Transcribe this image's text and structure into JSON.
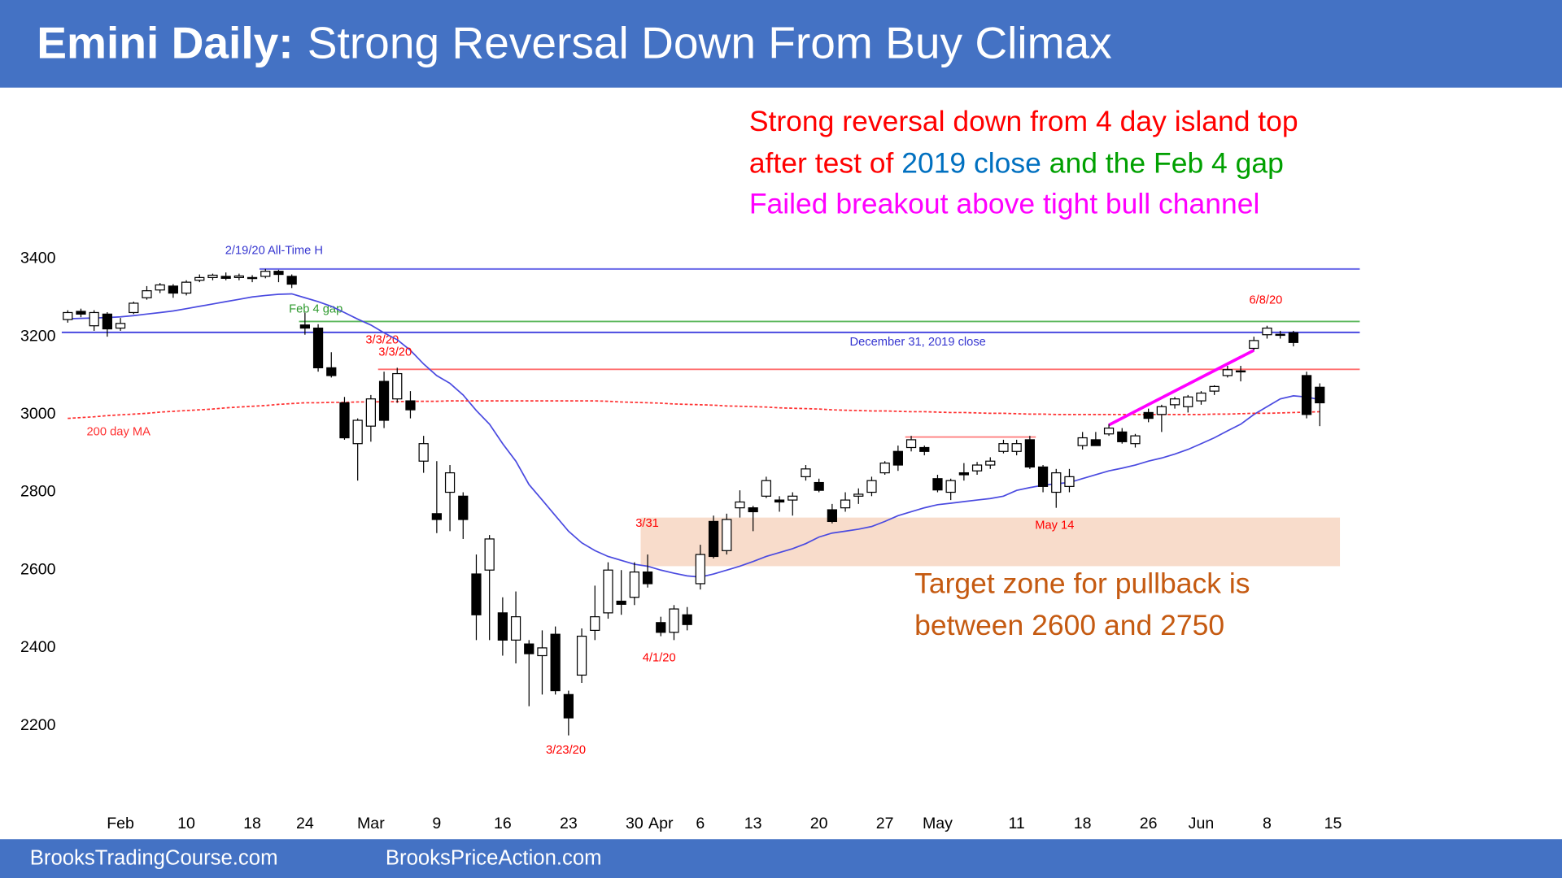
{
  "chart_data": {
    "type": "candlestick",
    "title": [
      "Emini Daily:",
      "Strong Reversal Down From Buy Climax"
    ],
    "footer": [
      "BrooksTradingCourse.com",
      "BrooksPriceAction.com"
    ],
    "notes": [
      [
        {
          "text": "Strong reversal down from 4 day island top",
          "color": "#ff0000"
        }
      ],
      [
        {
          "text": "after test of",
          "color": "#ff0000"
        },
        {
          "text": "2019 close",
          "color": "#0070c0"
        },
        {
          "text": "and the Feb 4 gap",
          "color": "#00a000"
        }
      ],
      [
        {
          "text": "Failed breakout above tight bull channel",
          "color": "#ff00ff"
        }
      ]
    ],
    "target_note": {
      "lines": [
        "Target zone for pullback is",
        "between 2600 and 2750"
      ],
      "color": "#c55a11"
    },
    "categories": [
      null,
      null,
      null,
      null,
      "Feb",
      null,
      null,
      null,
      null,
      "10",
      null,
      null,
      null,
      null,
      "18",
      null,
      null,
      null,
      "24",
      null,
      null,
      null,
      null,
      "Mar",
      null,
      null,
      null,
      null,
      "9",
      null,
      null,
      null,
      null,
      "16",
      null,
      null,
      null,
      null,
      "23",
      null,
      null,
      null,
      null,
      "30",
      null,
      "Apr",
      null,
      null,
      "6",
      null,
      null,
      null,
      "13",
      null,
      null,
      null,
      null,
      "20",
      null,
      null,
      null,
      null,
      "27",
      null,
      null,
      null,
      "May",
      null,
      null,
      null,
      null,
      null,
      "11",
      null,
      null,
      null,
      null,
      "18",
      null,
      null,
      null,
      null,
      "26",
      null,
      null,
      null,
      "Jun",
      null,
      null,
      null,
      null,
      "8",
      null,
      null,
      null,
      null,
      "15"
    ],
    "open": [
      3244,
      3265,
      3228,
      3258,
      3222,
      3262,
      3300,
      3320,
      3330,
      3312,
      3345,
      3352,
      3355,
      3352,
      3350,
      3355,
      3368,
      3355,
      3230,
      3222,
      3120,
      3030,
      2925,
      2970,
      3085,
      3040,
      3035,
      2880,
      2745,
      2800,
      2790,
      2590,
      2600,
      2490,
      2420,
      2410,
      2380,
      2435,
      2280,
      2330,
      2445,
      2490,
      2520,
      2530,
      2595,
      2465,
      2440,
      2485,
      2565,
      2725,
      2650,
      2760,
      2760,
      2790,
      2780,
      2780,
      2840,
      2825,
      2755,
      2760,
      2790,
      2800,
      2850,
      2905,
      2915,
      2915,
      2835,
      2800,
      2850,
      2855,
      2870,
      2905,
      2905,
      2935,
      2865,
      2800,
      2815,
      2920,
      2935,
      2950,
      2955,
      2925,
      3005,
      3000,
      3025,
      3020,
      3035,
      3060,
      3100,
      3110,
      3170,
      3205,
      3205,
      3210,
      3100,
      3070,
      null
    ],
    "high": [
      3268,
      3272,
      3268,
      3263,
      3248,
      3290,
      3330,
      3338,
      3335,
      3345,
      3360,
      3362,
      3365,
      3362,
      3358,
      3374,
      3372,
      3360,
      3262,
      3232,
      3160,
      3045,
      2990,
      3050,
      3110,
      3120,
      3060,
      2945,
      2880,
      2870,
      2800,
      2640,
      2690,
      2530,
      2545,
      2420,
      2445,
      2455,
      2290,
      2450,
      2560,
      2620,
      2600,
      2620,
      2640,
      2480,
      2510,
      2505,
      2665,
      2740,
      2745,
      2805,
      2765,
      2840,
      2790,
      2800,
      2870,
      2835,
      2770,
      2800,
      2810,
      2840,
      2880,
      2920,
      2945,
      2920,
      2845,
      2835,
      2875,
      2878,
      2890,
      2935,
      2935,
      2945,
      2870,
      2860,
      2860,
      2955,
      2955,
      2975,
      2965,
      2950,
      3015,
      3025,
      3045,
      3050,
      3060,
      3075,
      3125,
      3125,
      3200,
      3228,
      3215,
      3215,
      3110,
      3080,
      null
    ],
    "low": [
      3236,
      3250,
      3215,
      3200,
      3215,
      3258,
      3295,
      3312,
      3300,
      3306,
      3340,
      3345,
      3345,
      3345,
      3340,
      3350,
      3340,
      3325,
      3205,
      3110,
      3095,
      2935,
      2830,
      2930,
      2965,
      3030,
      2990,
      2850,
      2695,
      2700,
      2680,
      2420,
      2420,
      2380,
      2360,
      2250,
      2280,
      2280,
      2175,
      2310,
      2420,
      2475,
      2485,
      2510,
      2555,
      2430,
      2420,
      2445,
      2550,
      2630,
      2640,
      2735,
      2700,
      2785,
      2750,
      2740,
      2830,
      2800,
      2720,
      2750,
      2770,
      2790,
      2845,
      2855,
      2905,
      2895,
      2800,
      2780,
      2830,
      2845,
      2860,
      2900,
      2895,
      2860,
      2800,
      2760,
      2800,
      2910,
      2920,
      2945,
      2925,
      2915,
      2980,
      2955,
      3015,
      3005,
      3025,
      3050,
      3095,
      3085,
      3165,
      3195,
      3195,
      3175,
      2990,
      2970,
      null
    ],
    "close": [
      3262,
      3258,
      3262,
      3220,
      3234,
      3286,
      3318,
      3333,
      3312,
      3340,
      3352,
      3358,
      3350,
      3356,
      3352,
      3368,
      3360,
      3335,
      3222,
      3120,
      3100,
      2940,
      2985,
      3040,
      2985,
      3105,
      3012,
      2925,
      2730,
      2850,
      2730,
      2485,
      2680,
      2420,
      2480,
      2385,
      2400,
      2290,
      2220,
      2430,
      2480,
      2600,
      2512,
      2595,
      2565,
      2440,
      2500,
      2460,
      2640,
      2635,
      2730,
      2775,
      2750,
      2830,
      2775,
      2790,
      2860,
      2805,
      2725,
      2780,
      2795,
      2830,
      2875,
      2870,
      2935,
      2905,
      2806,
      2830,
      2845,
      2870,
      2880,
      2925,
      2925,
      2865,
      2815,
      2850,
      2840,
      2940,
      2920,
      2965,
      2930,
      2945,
      2990,
      3020,
      3040,
      3045,
      3055,
      3072,
      3115,
      3112,
      3190,
      3222,
      3206,
      3185,
      3000,
      3030,
      null
    ],
    "lines": [
      {
        "color": "#4a4ae0",
        "values": [
          3246,
          3247,
          3248,
          3249,
          3251,
          3254,
          3258,
          3262,
          3266,
          3272,
          3278,
          3284,
          3290,
          3296,
          3302,
          3306,
          3309,
          3310,
          3300,
          3290,
          3278,
          3262,
          3245,
          3230,
          3210,
          3192,
          3165,
          3130,
          3100,
          3080,
          3050,
          3010,
          2975,
          2925,
          2880,
          2820,
          2780,
          2740,
          2700,
          2670,
          2650,
          2635,
          2625,
          2615,
          2610,
          2600,
          2592,
          2585,
          2582,
          2590,
          2600,
          2610,
          2622,
          2635,
          2645,
          2655,
          2668,
          2685,
          2695,
          2700,
          2705,
          2712,
          2725,
          2740,
          2750,
          2760,
          2768,
          2772,
          2776,
          2780,
          2784,
          2790,
          2805,
          2812,
          2818,
          2822,
          2825,
          2835,
          2845,
          2855,
          2862,
          2870,
          2880,
          2888,
          2898,
          2910,
          2925,
          2940,
          2958,
          2975,
          3000,
          3020,
          3040,
          3048,
          3045,
          3038,
          null
        ]
      },
      {
        "name": "200 day MA",
        "color": "#ff3030",
        "dashed": true,
        "values": [
          2990,
          2992,
          2994,
          2997,
          2999,
          3001,
          3003,
          3006,
          3008,
          3010,
          3012,
          3014,
          3017,
          3019,
          3021,
          3023,
          3026,
          3028,
          3030,
          3030,
          3031,
          3031,
          3032,
          3032,
          3033,
          3033,
          3034,
          3034,
          3034,
          3035,
          3035,
          3035,
          3035,
          3035,
          3035,
          3035,
          3035,
          3035,
          3035,
          3035,
          3035,
          3034,
          3032,
          3031,
          3030,
          3029,
          3027,
          3026,
          3025,
          3024,
          3022,
          3021,
          3020,
          3019,
          3017,
          3016,
          3015,
          3014,
          3012,
          3011,
          3010,
          3009,
          3009,
          3008,
          3007,
          3007,
          3006,
          3005,
          3005,
          3004,
          3003,
          3003,
          3002,
          3001,
          3001,
          3000,
          3000,
          3000,
          3000,
          3000,
          3000,
          3000,
          3000,
          3000,
          3000,
          3000,
          3000,
          3001,
          3001,
          3002,
          3003,
          3003,
          3004,
          3005,
          3006,
          3007,
          null
        ]
      }
    ],
    "hlines": [
      {
        "value": 3374,
        "from": 15,
        "color": "#6a6ae8",
        "label": "2/19/20 All-Time H"
      },
      {
        "value": 3239,
        "from": 18,
        "color": "#5cb85c",
        "label": "Feb 4 gap"
      },
      {
        "value": 3211,
        "from": 0,
        "color": "#4a4ae0",
        "label": "December 31, 2019 close"
      },
      {
        "value": 3116,
        "from": 24,
        "color": "#ff7070",
        "label": "3/3/20"
      },
      {
        "value": 2942,
        "from": 64,
        "to": 73,
        "color": "#ff8080"
      }
    ],
    "channel": {
      "color": "#ff00ff",
      "x": [
        79,
        90
      ],
      "values": [
        2973,
        3165
      ]
    },
    "zone": {
      "from": 44,
      "to": 96,
      "low": 2610,
      "high": 2735,
      "color": "#f8dccb"
    },
    "annotations": [
      {
        "text": "3/3/20",
        "color": "#ff0000"
      },
      {
        "text": "6/8/20",
        "color": "#ff0000"
      },
      {
        "text": "3/31",
        "color": "#ff0000"
      },
      {
        "text": "4/1/20",
        "color": "#ff0000"
      },
      {
        "text": "3/23/20",
        "color": "#ff0000"
      },
      {
        "text": "May 14",
        "color": "#ff0000"
      }
    ],
    "ylim": [
      2050,
      3450
    ],
    "yticks": [
      2200,
      2400,
      2600,
      2800,
      3000,
      3200,
      3400
    ],
    "up_color": "#ffffff",
    "down_color": "#000000",
    "header_color": "#4472c4"
  }
}
